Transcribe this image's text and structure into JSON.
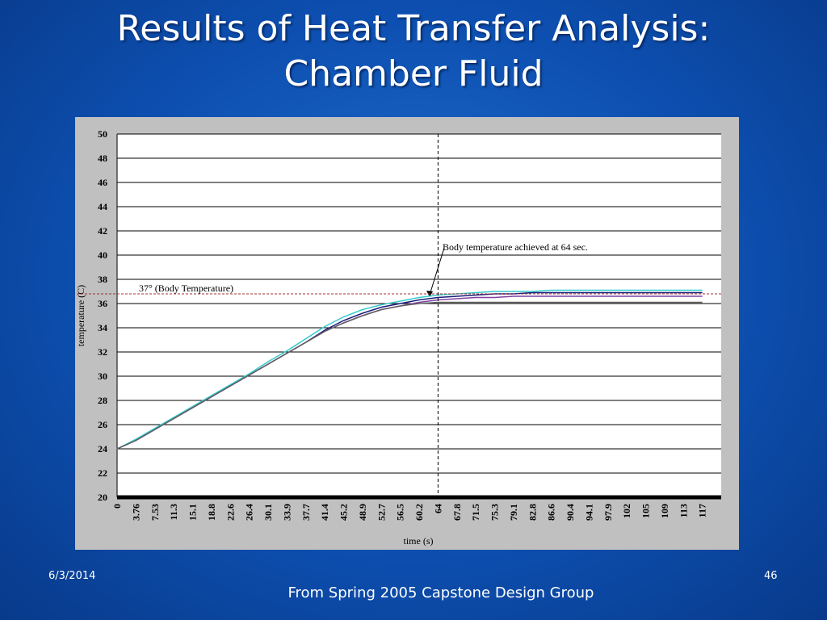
{
  "slide": {
    "title_line1": "Results of Heat Transfer Analysis:",
    "title_line2": "Chamber Fluid",
    "date": "6/3/2014",
    "page": "46",
    "caption": "From Spring 2005 Capstone Design Group"
  },
  "chart_data": {
    "type": "line",
    "y_label": "temperature (C)",
    "x_label": "time (s)",
    "categories": [
      "0",
      "3.76",
      "7.53",
      "11.3",
      "15.1",
      "18.8",
      "22.6",
      "26.4",
      "30.1",
      "33.9",
      "37.7",
      "41.4",
      "45.2",
      "48.9",
      "52.7",
      "56.5",
      "60.2",
      "64",
      "67.8",
      "71.5",
      "75.3",
      "79.1",
      "82.8",
      "86.6",
      "90.4",
      "94.1",
      "97.9",
      "102",
      "105",
      "109",
      "113",
      "117"
    ],
    "series": [
      {
        "color": "#1a1a7a",
        "values": [
          24,
          24.7,
          25.6,
          26.5,
          27.4,
          28.3,
          29.2,
          30.1,
          31.0,
          31.9,
          32.8,
          33.8,
          34.6,
          35.2,
          35.7,
          36.0,
          36.3,
          36.5,
          36.6,
          36.7,
          36.8,
          36.8,
          36.9,
          36.9,
          36.9,
          36.9,
          36.9,
          36.9,
          36.9,
          36.9,
          36.9,
          36.9
        ]
      },
      {
        "color": "#33cccc",
        "values": [
          24,
          24.8,
          25.7,
          26.6,
          27.5,
          28.4,
          29.3,
          30.2,
          31.2,
          32.1,
          33.1,
          34.1,
          34.9,
          35.5,
          35.9,
          36.2,
          36.5,
          36.7,
          36.8,
          36.9,
          37.0,
          37.0,
          37.0,
          37.1,
          37.1,
          37.1,
          37.1,
          37.1,
          37.1,
          37.1,
          37.1,
          37.1
        ]
      },
      {
        "color": "#8040a0",
        "values": [
          24,
          24.7,
          25.6,
          26.5,
          27.4,
          28.3,
          29.2,
          30.1,
          31.0,
          31.9,
          32.8,
          33.7,
          34.4,
          35.0,
          35.5,
          35.8,
          36.1,
          36.3,
          36.4,
          36.5,
          36.5,
          36.6,
          36.6,
          36.6,
          36.6,
          36.6,
          36.6,
          36.6,
          36.6,
          36.6,
          36.6,
          36.6
        ]
      },
      {
        "color": "#606060",
        "values": [
          24,
          24.7,
          25.6,
          26.5,
          27.4,
          28.3,
          29.2,
          30.1,
          31.0,
          31.9,
          32.8,
          33.7,
          34.4,
          35.0,
          35.5,
          35.8,
          36.0,
          36.1,
          36.1,
          36.1,
          36.1,
          36.1,
          36.1,
          36.1,
          36.1,
          36.1,
          36.1,
          36.1,
          36.1,
          36.1,
          36.1,
          36.1
        ]
      }
    ],
    "ylim": [
      20,
      50
    ],
    "yticks": [
      20,
      22,
      24,
      26,
      28,
      30,
      32,
      34,
      36,
      38,
      40,
      42,
      44,
      46,
      48,
      50
    ],
    "grid": true,
    "hline": 36.8,
    "hline_label": "37° (Body Temperature)",
    "vline": "64",
    "vline_label": "Body temperature achieved at 64 sec."
  }
}
